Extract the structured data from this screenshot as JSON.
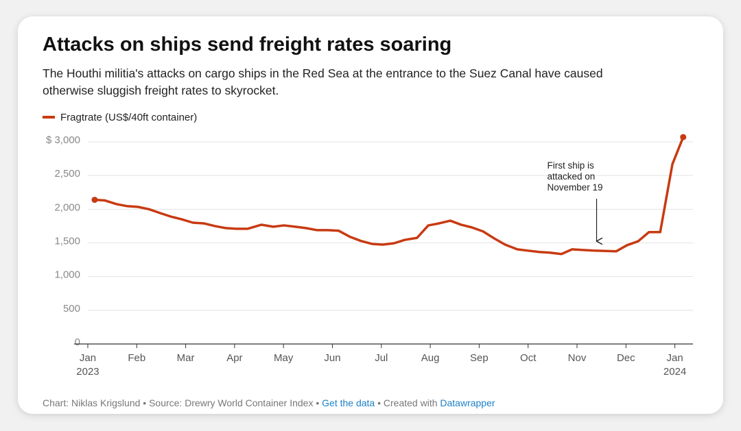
{
  "chart_data": {
    "type": "line",
    "title": "Attacks on ships send freight rates soaring",
    "subtitle": [
      "The Houthi militia's attacks on cargo ships in the Red Sea at the entrance to the Suez Canal have caused",
      "otherwise sluggish freight rates to skyrocket."
    ],
    "x": [
      0.14,
      0.35,
      0.59,
      0.81,
      1.02,
      1.25,
      1.47,
      1.7,
      1.92,
      2.15,
      2.37,
      2.6,
      2.82,
      3.04,
      3.27,
      3.55,
      3.79,
      4.01,
      4.24,
      4.46,
      4.68,
      4.91,
      5.13,
      5.36,
      5.58,
      5.81,
      6.03,
      6.26,
      6.48,
      6.73,
      6.96,
      7.18,
      7.41,
      7.63,
      7.85,
      8.08,
      8.3,
      8.53,
      8.78,
      9.0,
      9.23,
      9.45,
      9.68,
      9.9,
      10.13,
      10.35,
      10.58,
      10.8,
      11.02,
      11.25,
      11.47,
      11.7,
      11.95,
      12.17
    ],
    "series": [
      {
        "name": "Fragtrate (US$/40ft container)",
        "color": "#c83a12",
        "values": [
          2140,
          2130,
          2075,
          2045,
          2035,
          2000,
          1945,
          1890,
          1850,
          1800,
          1790,
          1750,
          1720,
          1710,
          1710,
          1770,
          1740,
          1760,
          1740,
          1720,
          1690,
          1690,
          1680,
          1590,
          1530,
          1485,
          1475,
          1495,
          1545,
          1575,
          1760,
          1790,
          1830,
          1770,
          1730,
          1670,
          1570,
          1475,
          1405,
          1385,
          1365,
          1355,
          1335,
          1405,
          1395,
          1385,
          1380,
          1375,
          1465,
          1525,
          1660,
          1660,
          2670,
          3070
        ]
      }
    ],
    "xlim": [
      -0.28,
      12.37
    ],
    "xticks": [
      {
        "value": 0,
        "label": "Jan 2023"
      },
      {
        "value": 1,
        "label": "Feb"
      },
      {
        "value": 2,
        "label": "Mar"
      },
      {
        "value": 3,
        "label": "Apr"
      },
      {
        "value": 4,
        "label": "May"
      },
      {
        "value": 5,
        "label": "Jun"
      },
      {
        "value": 6,
        "label": "Jul"
      },
      {
        "value": 7,
        "label": "Aug"
      },
      {
        "value": 8,
        "label": "Sep"
      },
      {
        "value": 9,
        "label": "Oct"
      },
      {
        "value": 10,
        "label": "Nov"
      },
      {
        "value": 11,
        "label": "Dec"
      },
      {
        "value": 12,
        "label": "Jan 2024"
      }
    ],
    "ylim": [
      0,
      3000
    ],
    "yticks": [
      0,
      500,
      {
        "value": 1000,
        "label": "1,000"
      },
      {
        "value": 1500,
        "label": "1,500"
      },
      {
        "value": 2000,
        "label": "2,000"
      },
      {
        "value": 2500,
        "label": "2,500"
      },
      {
        "value": 3000,
        "label": "$ 3,000"
      }
    ],
    "grid": true,
    "annotation": {
      "x": 10.4,
      "lines": [
        "First ship is",
        "attacked on",
        "November 19"
      ]
    },
    "footer": [
      "Chart: Niklas Krigslund • Source: Drewry World Container Index • ",
      "Get the data",
      " • Created with ",
      "Datawrapper"
    ]
  }
}
